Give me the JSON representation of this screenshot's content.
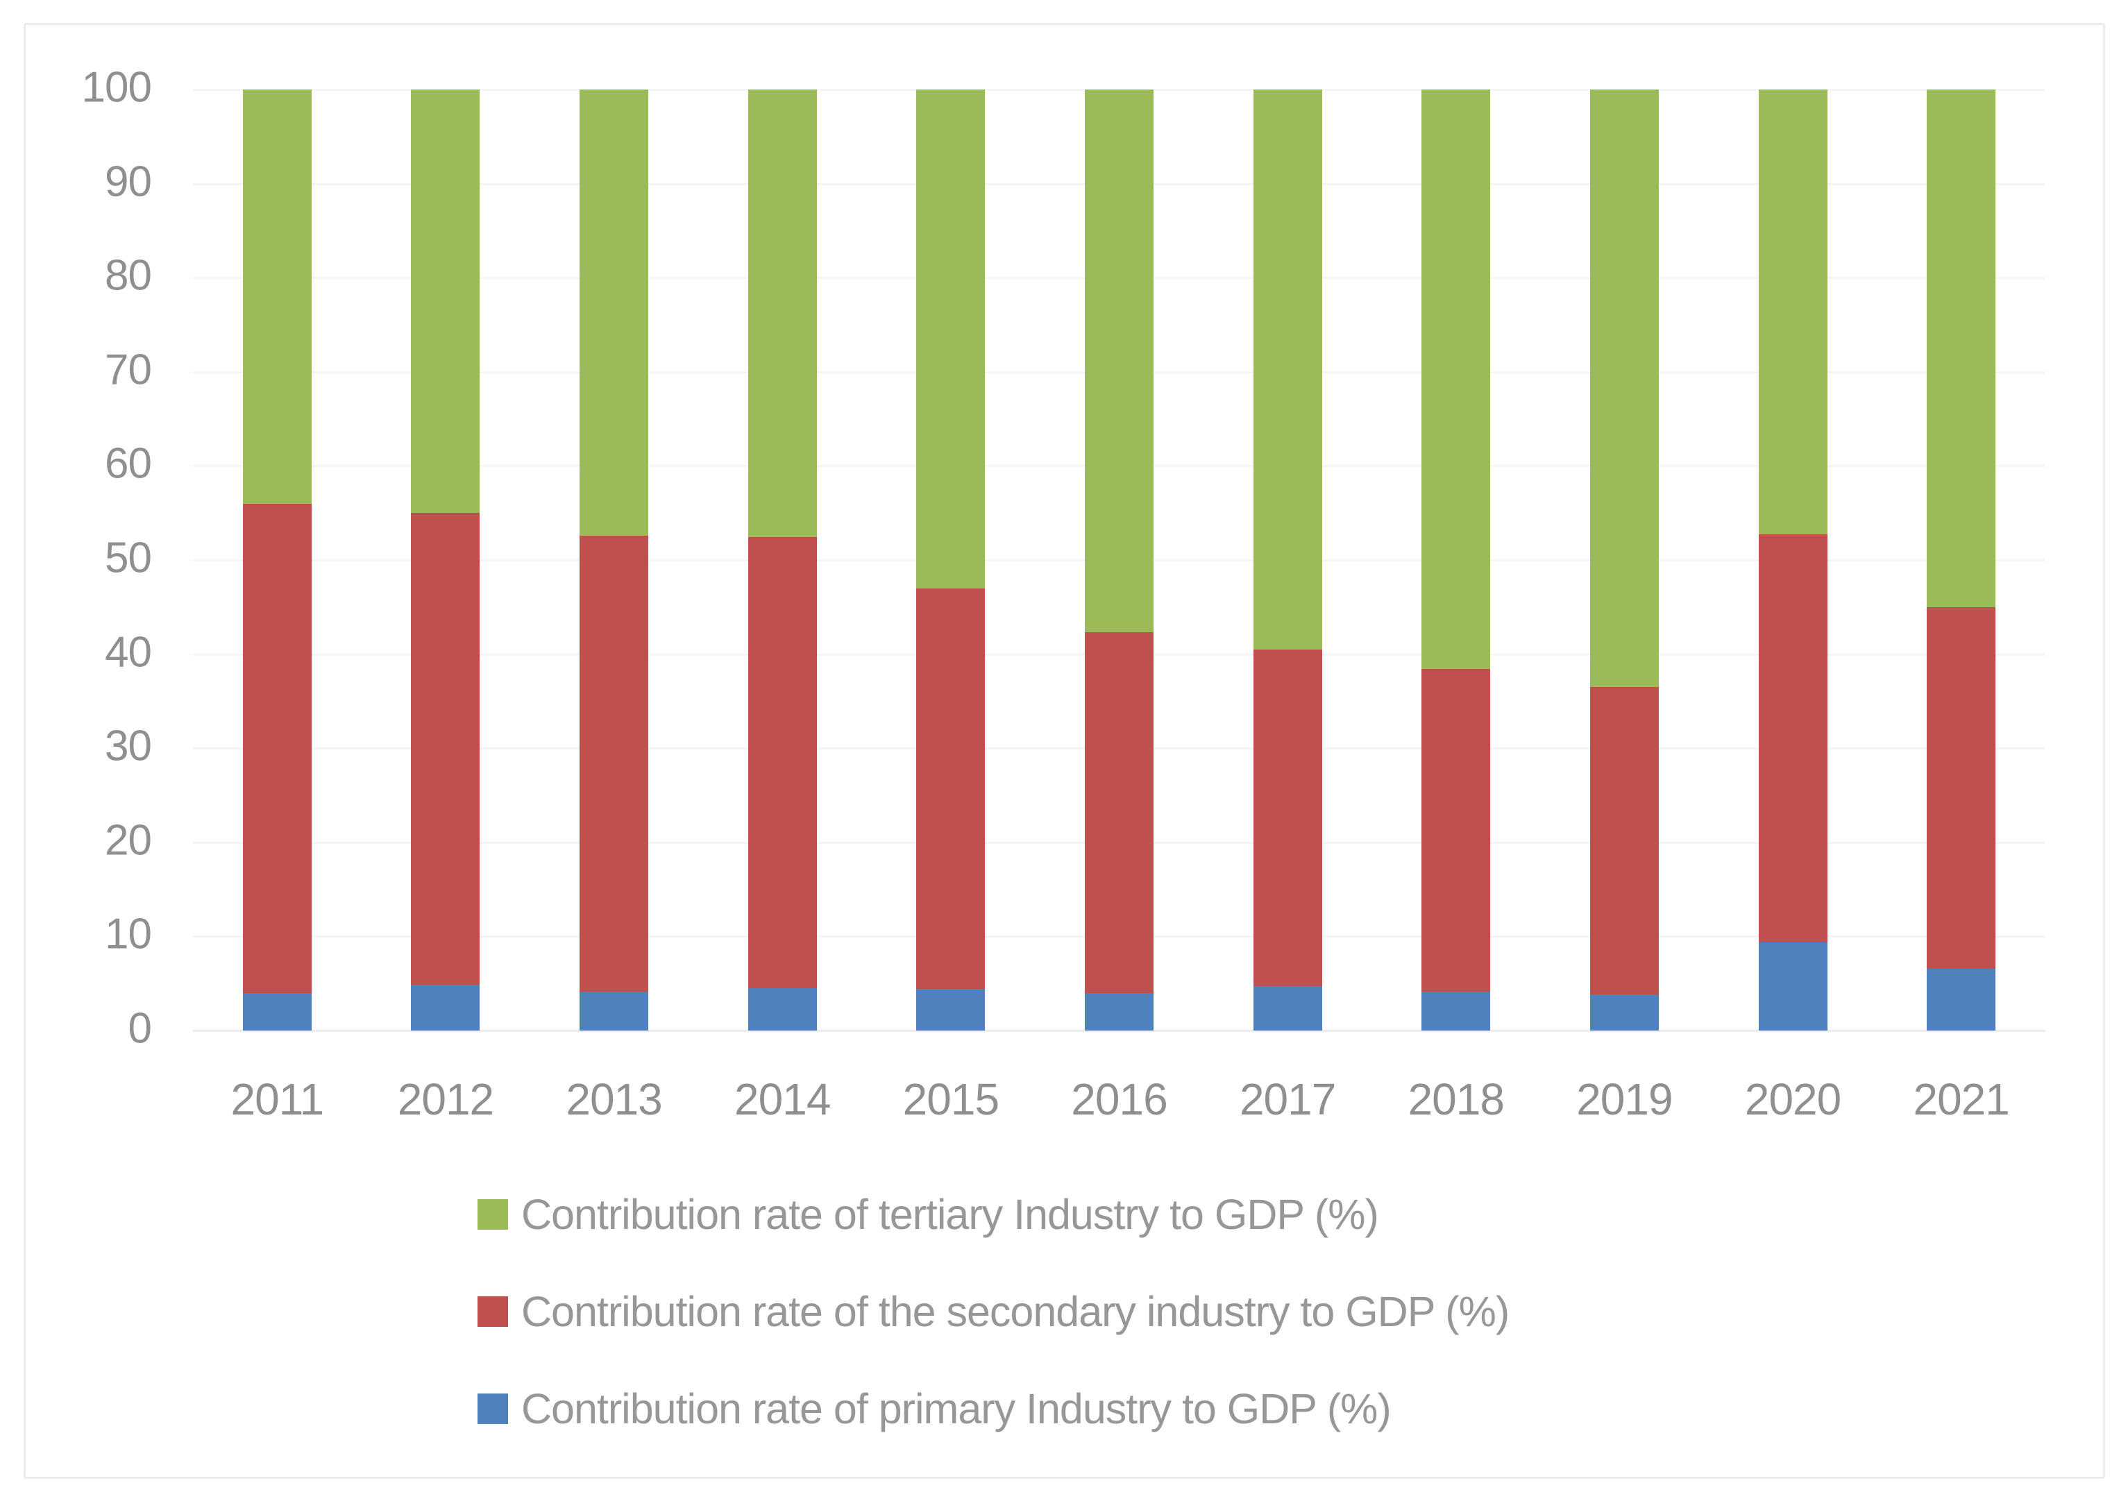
{
  "chart_data": {
    "type": "bar",
    "subtype": "stacked-100",
    "title": "",
    "xlabel": "",
    "ylabel": "",
    "categories": [
      "2011",
      "2012",
      "2013",
      "2014",
      "2015",
      "2016",
      "2017",
      "2018",
      "2019",
      "2020",
      "2021"
    ],
    "series": [
      {
        "name": "Contribution rate of primary Industry to GDP (%)",
        "color": "#4F81BD",
        "values": [
          4.0,
          4.9,
          4.1,
          4.5,
          4.4,
          4.0,
          4.7,
          4.1,
          3.8,
          9.4,
          6.6
        ]
      },
      {
        "name": "Contribution rate of the secondary industry to GDP (%)",
        "color": "#C0504D",
        "values": [
          52.0,
          50.1,
          48.5,
          47.9,
          42.6,
          38.3,
          35.8,
          34.3,
          32.7,
          43.3,
          38.4
        ]
      },
      {
        "name": "Contribution rate of tertiary Industry to GDP (%)",
        "color": "#9BBB59",
        "values": [
          44.0,
          45.0,
          47.4,
          47.6,
          53.0,
          57.7,
          59.5,
          61.6,
          63.5,
          47.3,
          55.0
        ]
      }
    ],
    "ylim": [
      0,
      100
    ],
    "ytick_step": 10,
    "grid": true,
    "legend_position": "bottom-left"
  },
  "y_axis": {
    "ticks": [
      "100",
      "90",
      "80",
      "70",
      "60",
      "50",
      "40",
      "30",
      "20",
      "10",
      "0"
    ]
  },
  "x_axis": {
    "labels": [
      "2011",
      "2012",
      "2013",
      "2014",
      "2015",
      "2016",
      "2017",
      "2018",
      "2019",
      "2020",
      "2021"
    ]
  },
  "legend": {
    "items": [
      {
        "label": "Contribution rate of tertiary Industry to GDP (%)",
        "color": "#9BBB59"
      },
      {
        "label": "Contribution rate of the secondary industry to GDP (%)",
        "color": "#C0504D"
      },
      {
        "label": "Contribution rate of primary Industry to GDP (%)",
        "color": "#4F81BD"
      }
    ]
  },
  "colors": {
    "primary_series": "#4F81BD",
    "secondary_series": "#C0504D",
    "tertiary_series": "#9BBB59",
    "axis_text": "#8f8f8f",
    "legend_text": "#979797",
    "gridline": "#f5f5f5",
    "frame_border": "#ebebeb",
    "background": "#ffffff"
  }
}
